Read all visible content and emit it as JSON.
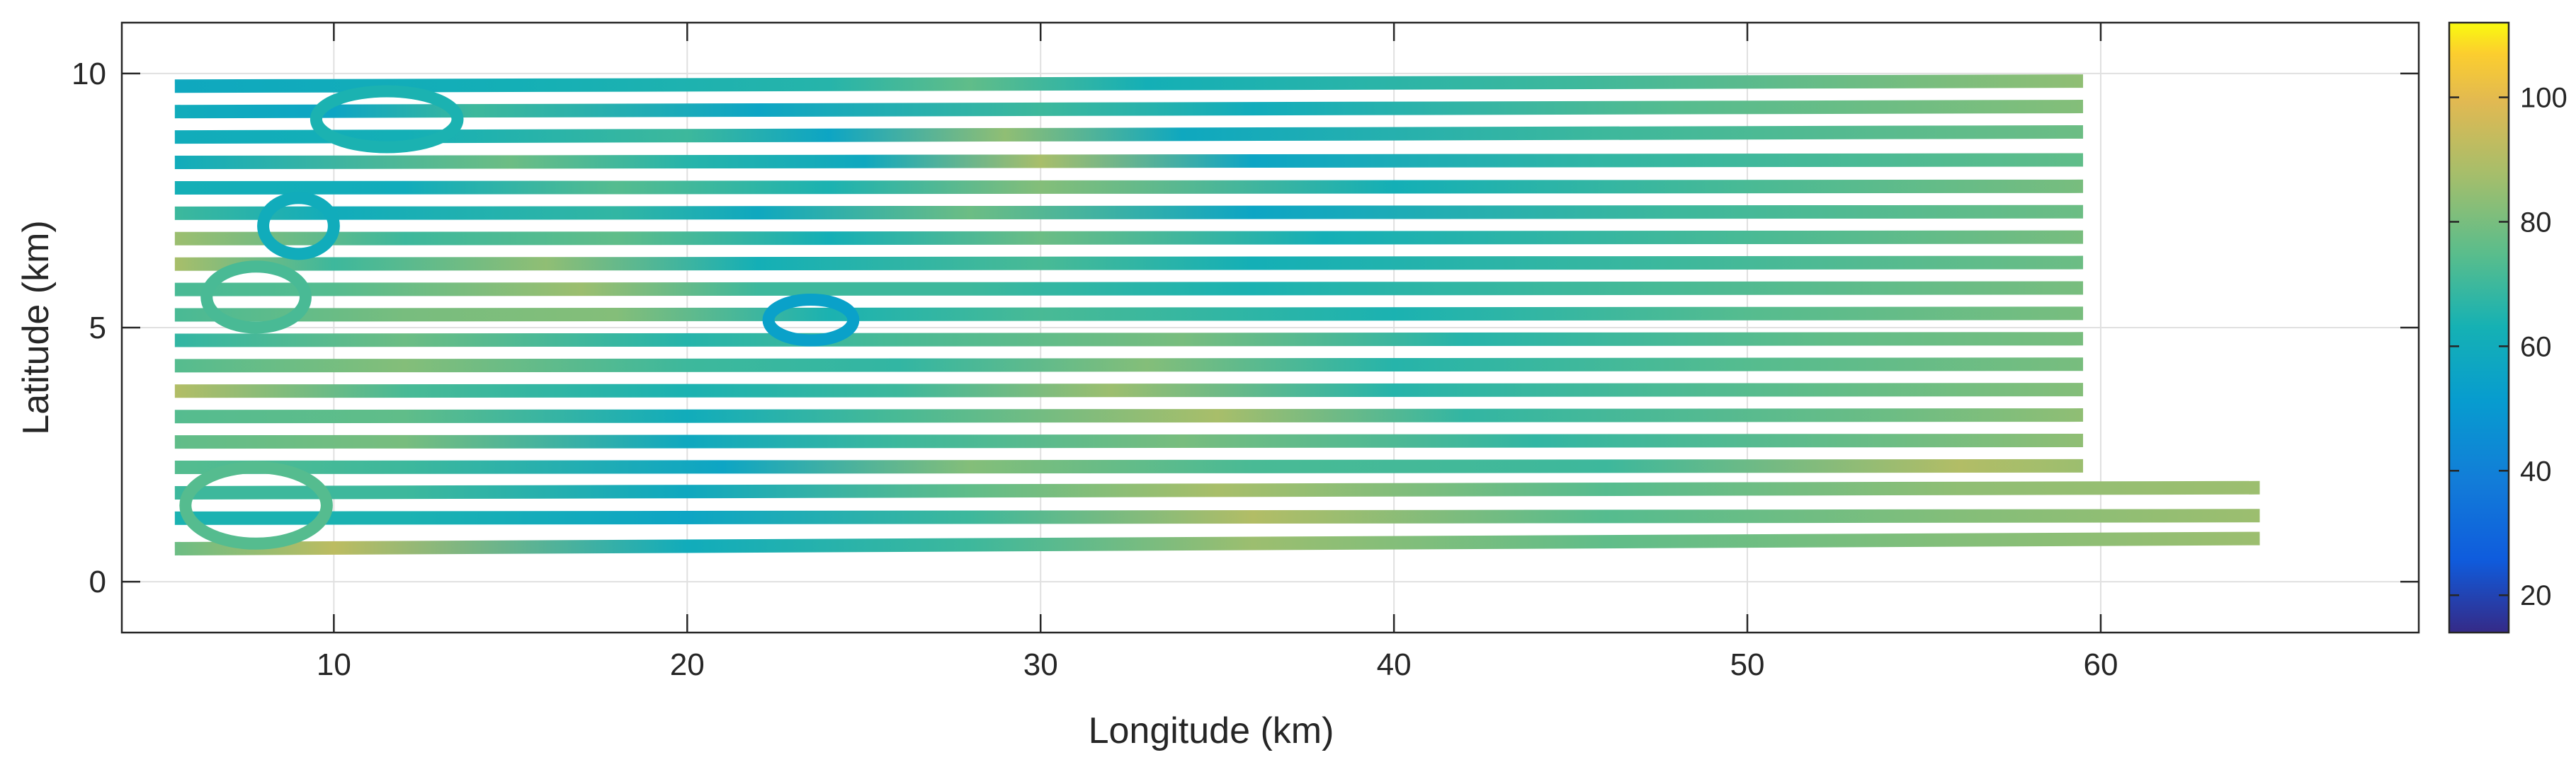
{
  "chart_data": {
    "type": "scatter",
    "title": "",
    "xlabel": "Longitude (km)",
    "ylabel": "Latitude (km)",
    "xlim": [
      4,
      69
    ],
    "ylim": [
      -1,
      11
    ],
    "xticks": [
      10,
      20,
      30,
      40,
      50,
      60
    ],
    "yticks": [
      0,
      5,
      10
    ],
    "grid": true,
    "colorbar": {
      "position": "right",
      "clim": [
        14,
        112
      ],
      "ticks": [
        20,
        40,
        60,
        80,
        100
      ],
      "colormap": "parula"
    },
    "track_lines": [
      {
        "y0": 9.75,
        "y1": 9.85,
        "x0": 5.5,
        "x1": 59.5,
        "values": [
          [
            5.5,
            58
          ],
          [
            15,
            62
          ],
          [
            24,
            66
          ],
          [
            28,
            76
          ],
          [
            33,
            62
          ],
          [
            45,
            70
          ],
          [
            55,
            80
          ],
          [
            59.5,
            84
          ]
        ]
      },
      {
        "y0": 9.25,
        "y1": 9.35,
        "x0": 5.5,
        "x1": 59.5,
        "values": [
          [
            5.5,
            60
          ],
          [
            10,
            56
          ],
          [
            14,
            70
          ],
          [
            22,
            56
          ],
          [
            30,
            70
          ],
          [
            36,
            60
          ],
          [
            48,
            74
          ],
          [
            59.5,
            82
          ]
        ]
      },
      {
        "y0": 8.75,
        "y1": 8.85,
        "x0": 5.5,
        "x1": 59.5,
        "values": [
          [
            5.5,
            60
          ],
          [
            12,
            62
          ],
          [
            20,
            70
          ],
          [
            24,
            56
          ],
          [
            29,
            84
          ],
          [
            34,
            58
          ],
          [
            46,
            70
          ],
          [
            59.5,
            78
          ]
        ]
      },
      {
        "y0": 8.25,
        "y1": 8.3,
        "x0": 5.5,
        "x1": 59.5,
        "values": [
          [
            5.5,
            60
          ],
          [
            15,
            78
          ],
          [
            20,
            66
          ],
          [
            25,
            58
          ],
          [
            30,
            88
          ],
          [
            36,
            56
          ],
          [
            46,
            68
          ],
          [
            59.5,
            76
          ]
        ]
      },
      {
        "y0": 7.75,
        "y1": 7.78,
        "x0": 5.5,
        "x1": 59.5,
        "values": [
          [
            5.5,
            62
          ],
          [
            12,
            60
          ],
          [
            18,
            74
          ],
          [
            24,
            64
          ],
          [
            30,
            82
          ],
          [
            40,
            62
          ],
          [
            50,
            72
          ],
          [
            59.5,
            80
          ]
        ]
      },
      {
        "y0": 7.25,
        "y1": 7.28,
        "x0": 5.5,
        "x1": 59.5,
        "values": [
          [
            5.5,
            70
          ],
          [
            10,
            60
          ],
          [
            18,
            68
          ],
          [
            22,
            58
          ],
          [
            28,
            78
          ],
          [
            36,
            56
          ],
          [
            48,
            70
          ],
          [
            59.5,
            78
          ]
        ]
      },
      {
        "y0": 6.75,
        "y1": 6.78,
        "x0": 5.5,
        "x1": 59.5,
        "values": [
          [
            5.5,
            86
          ],
          [
            12,
            70
          ],
          [
            18,
            76
          ],
          [
            24,
            62
          ],
          [
            30,
            78
          ],
          [
            38,
            62
          ],
          [
            50,
            72
          ],
          [
            59.5,
            80
          ]
        ]
      },
      {
        "y0": 6.25,
        "y1": 6.28,
        "x0": 5.5,
        "x1": 59.5,
        "values": [
          [
            5.5,
            88
          ],
          [
            10,
            70
          ],
          [
            16,
            84
          ],
          [
            22,
            62
          ],
          [
            30,
            72
          ],
          [
            36,
            62
          ],
          [
            48,
            70
          ],
          [
            59.5,
            78
          ]
        ]
      },
      {
        "y0": 5.75,
        "y1": 5.78,
        "x0": 5.5,
        "x1": 59.5,
        "values": [
          [
            5.5,
            72
          ],
          [
            10,
            74
          ],
          [
            17,
            86
          ],
          [
            22,
            70
          ],
          [
            28,
            70
          ],
          [
            36,
            64
          ],
          [
            48,
            72
          ],
          [
            59.5,
            80
          ]
        ]
      },
      {
        "y0": 5.25,
        "y1": 5.28,
        "x0": 5.5,
        "x1": 59.5,
        "values": [
          [
            5.5,
            72
          ],
          [
            12,
            80
          ],
          [
            18,
            82
          ],
          [
            24,
            64
          ],
          [
            30,
            72
          ],
          [
            40,
            64
          ],
          [
            50,
            74
          ],
          [
            59.5,
            80
          ]
        ]
      },
      {
        "y0": 4.75,
        "y1": 4.78,
        "x0": 5.5,
        "x1": 59.5,
        "values": [
          [
            5.5,
            68
          ],
          [
            12,
            78
          ],
          [
            20,
            66
          ],
          [
            26,
            72
          ],
          [
            34,
            80
          ],
          [
            42,
            66
          ],
          [
            52,
            76
          ],
          [
            59.5,
            80
          ]
        ]
      },
      {
        "y0": 4.25,
        "y1": 4.28,
        "x0": 5.5,
        "x1": 59.5,
        "values": [
          [
            5.5,
            74
          ],
          [
            12,
            82
          ],
          [
            20,
            70
          ],
          [
            26,
            68
          ],
          [
            33,
            82
          ],
          [
            40,
            66
          ],
          [
            50,
            74
          ],
          [
            59.5,
            80
          ]
        ]
      },
      {
        "y0": 3.75,
        "y1": 3.78,
        "x0": 5.5,
        "x1": 59.5,
        "values": [
          [
            5.5,
            90
          ],
          [
            12,
            72
          ],
          [
            20,
            64
          ],
          [
            26,
            70
          ],
          [
            32,
            86
          ],
          [
            40,
            66
          ],
          [
            52,
            76
          ],
          [
            59.5,
            82
          ]
        ]
      },
      {
        "y0": 3.25,
        "y1": 3.28,
        "x0": 5.5,
        "x1": 59.5,
        "values": [
          [
            5.5,
            74
          ],
          [
            12,
            76
          ],
          [
            20,
            60
          ],
          [
            26,
            72
          ],
          [
            35,
            88
          ],
          [
            42,
            68
          ],
          [
            54,
            78
          ],
          [
            59.5,
            84
          ]
        ]
      },
      {
        "y0": 2.75,
        "y1": 2.78,
        "x0": 5.5,
        "x1": 59.5,
        "values": [
          [
            5.5,
            76
          ],
          [
            12,
            80
          ],
          [
            20,
            58
          ],
          [
            26,
            70
          ],
          [
            34,
            80
          ],
          [
            44,
            68
          ],
          [
            54,
            78
          ],
          [
            59.5,
            84
          ]
        ]
      },
      {
        "y0": 2.25,
        "y1": 2.28,
        "x0": 5.5,
        "x1": 59.5,
        "values": [
          [
            5.5,
            74
          ],
          [
            12,
            70
          ],
          [
            21,
            56
          ],
          [
            28,
            82
          ],
          [
            36,
            72
          ],
          [
            46,
            70
          ],
          [
            56,
            90
          ],
          [
            59.5,
            86
          ]
        ]
      },
      {
        "y0": 1.75,
        "y1": 1.85,
        "x0": 5.5,
        "x1": 64.5,
        "values": [
          [
            5.5,
            70
          ],
          [
            12,
            70
          ],
          [
            20,
            58
          ],
          [
            28,
            76
          ],
          [
            35,
            88
          ],
          [
            46,
            74
          ],
          [
            56,
            84
          ],
          [
            64.5,
            86
          ]
        ]
      },
      {
        "y0": 1.25,
        "y1": 1.3,
        "x0": 5.5,
        "x1": 64.5,
        "values": [
          [
            5.5,
            64
          ],
          [
            12,
            64
          ],
          [
            20,
            56
          ],
          [
            28,
            70
          ],
          [
            36,
            90
          ],
          [
            46,
            74
          ],
          [
            56,
            82
          ],
          [
            64.5,
            86
          ]
        ]
      },
      {
        "y0": 0.65,
        "y1": 0.85,
        "x0": 5.5,
        "x1": 64.5,
        "values": [
          [
            5.5,
            78
          ],
          [
            10,
            92
          ],
          [
            20,
            60
          ],
          [
            28,
            70
          ],
          [
            36,
            86
          ],
          [
            46,
            76
          ],
          [
            56,
            82
          ],
          [
            64.5,
            86
          ]
        ]
      }
    ],
    "turn_loops": [
      {
        "cx": 11.5,
        "cy": 9.1,
        "rx": 2.0,
        "ry": 0.55,
        "value": 64
      },
      {
        "cx": 9.0,
        "cy": 7.0,
        "rx": 1.0,
        "ry": 0.55,
        "value": 60
      },
      {
        "cx": 7.8,
        "cy": 5.6,
        "rx": 1.4,
        "ry": 0.6,
        "value": 72
      },
      {
        "cx": 23.5,
        "cy": 5.15,
        "rx": 1.2,
        "ry": 0.4,
        "value": 54
      },
      {
        "cx": 7.8,
        "cy": 1.5,
        "rx": 2.0,
        "ry": 0.75,
        "value": 74
      }
    ]
  }
}
